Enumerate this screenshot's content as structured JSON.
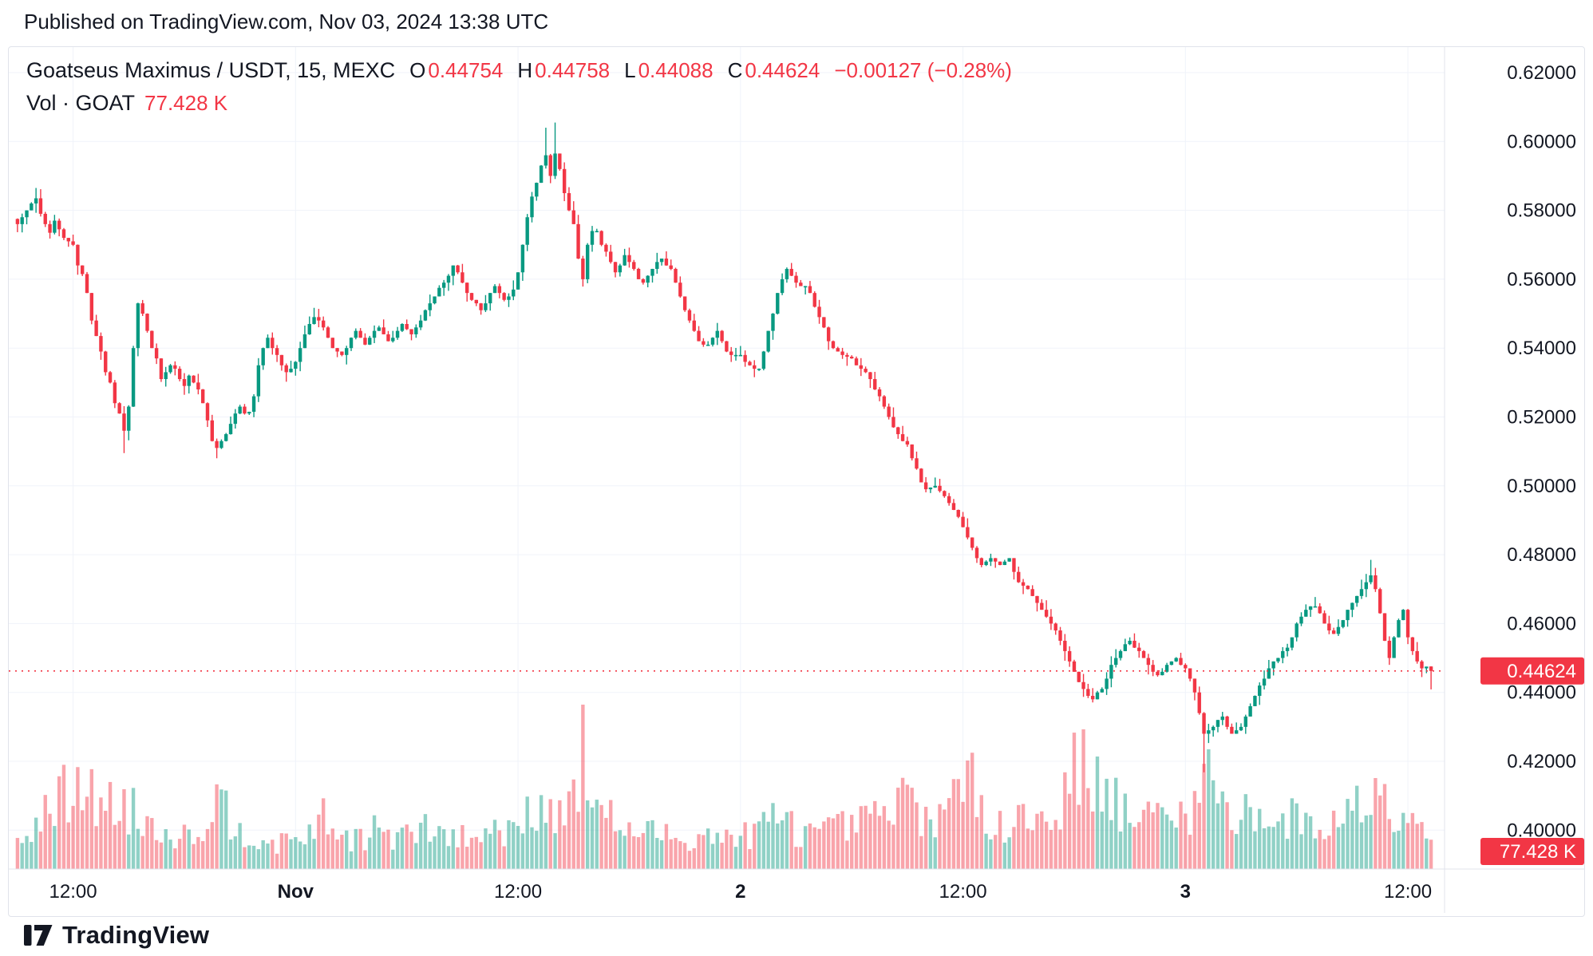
{
  "published": "Published on TradingView.com, Nov 03, 2024 13:38 UTC",
  "legend": {
    "title": "Goatseus Maximus / USDT, 15, MEXC",
    "o_label": "O",
    "o_value": "0.44754",
    "h_label": "H",
    "h_value": "0.44758",
    "l_label": "L",
    "l_value": "0.44088",
    "c_label": "C",
    "c_value": "0.44624",
    "change": "−0.00127 (−0.28%)",
    "vol_label": "Vol · GOAT",
    "vol_value": "77.428 K"
  },
  "footer": {
    "brand": "TradingView"
  },
  "colors": {
    "up": "#089981",
    "down": "#F23645",
    "volUp": "rgba(8,153,129,0.45)",
    "volDown": "rgba(242,54,69,0.45)",
    "grid": "#f0f3fa",
    "axisText": "#131722",
    "border": "#e0e3eb",
    "badgeBg": "#F23645",
    "badgeText": "#ffffff"
  },
  "chart_data": {
    "type": "candlestick",
    "symbol": "Goatseus Maximus / USDT",
    "interval": "15",
    "exchange": "MEXC",
    "last_ohlc": {
      "o": 0.44754,
      "h": 0.44758,
      "l": 0.44088,
      "c": 0.44624
    },
    "change": -0.00127,
    "change_pct": -0.28,
    "volume_label": "77.428 K",
    "last_price": 0.44624,
    "last_price_label": "0.44624",
    "y_axis": {
      "min": 0.4,
      "max": 0.62,
      "tick_step": 0.02,
      "ticks": [
        "0.62000",
        "0.60000",
        "0.58000",
        "0.56000",
        "0.54000",
        "0.52000",
        "0.50000",
        "0.48000",
        "0.46000",
        "0.44000",
        "0.42000",
        "0.40000"
      ]
    },
    "x_ticks": [
      {
        "i": 12,
        "label": "12:00",
        "bold": false
      },
      {
        "i": 60,
        "label": "Nov",
        "bold": true
      },
      {
        "i": 108,
        "label": "12:00",
        "bold": false
      },
      {
        "i": 156,
        "label": "2",
        "bold": true
      },
      {
        "i": 204,
        "label": "12:00",
        "bold": false
      },
      {
        "i": 252,
        "label": "3",
        "bold": true
      },
      {
        "i": 300,
        "label": "12:00",
        "bold": false
      }
    ],
    "n_candles": 306,
    "closes": [
      0.576,
      0.578,
      0.58,
      0.582,
      0.5835,
      0.579,
      0.576,
      0.5735,
      0.577,
      0.5745,
      0.572,
      0.571,
      0.57,
      0.564,
      0.5615,
      0.556,
      0.548,
      0.5435,
      0.539,
      0.533,
      0.53,
      0.524,
      0.521,
      0.516,
      0.523,
      0.54,
      0.553,
      0.55,
      0.545,
      0.54,
      0.537,
      0.531,
      0.533,
      0.535,
      0.534,
      0.531,
      0.529,
      0.532,
      0.53,
      0.528,
      0.524,
      0.519,
      0.513,
      0.511,
      0.513,
      0.515,
      0.518,
      0.521,
      0.523,
      0.521,
      0.5215,
      0.526,
      0.535,
      0.54,
      0.543,
      0.54,
      0.538,
      0.535,
      0.533,
      0.534,
      0.536,
      0.54,
      0.544,
      0.547,
      0.549,
      0.548,
      0.546,
      0.543,
      0.54,
      0.539,
      0.538,
      0.54,
      0.543,
      0.545,
      0.543,
      0.541,
      0.543,
      0.545,
      0.546,
      0.544,
      0.542,
      0.543,
      0.545,
      0.547,
      0.5455,
      0.544,
      0.546,
      0.548,
      0.551,
      0.553,
      0.555,
      0.5575,
      0.559,
      0.561,
      0.564,
      0.562,
      0.559,
      0.556,
      0.554,
      0.553,
      0.551,
      0.553,
      0.556,
      0.558,
      0.556,
      0.554,
      0.555,
      0.557,
      0.562,
      0.57,
      0.578,
      0.584,
      0.588,
      0.593,
      0.596,
      0.59,
      0.5965,
      0.592,
      0.585,
      0.58,
      0.576,
      0.566,
      0.56,
      0.57,
      0.574,
      0.574,
      0.57,
      0.568,
      0.565,
      0.562,
      0.564,
      0.567,
      0.565,
      0.563,
      0.56,
      0.559,
      0.561,
      0.563,
      0.565,
      0.566,
      0.564,
      0.563,
      0.559,
      0.555,
      0.551,
      0.548,
      0.545,
      0.542,
      0.541,
      0.541,
      0.543,
      0.545,
      0.542,
      0.539,
      0.538,
      0.538,
      0.538,
      0.536,
      0.535,
      0.534,
      0.534,
      0.539,
      0.545,
      0.55,
      0.556,
      0.56,
      0.563,
      0.561,
      0.559,
      0.558,
      0.558,
      0.556,
      0.552,
      0.549,
      0.546,
      0.542,
      0.54,
      0.539,
      0.538,
      0.5375,
      0.537,
      0.535,
      0.534,
      0.533,
      0.531,
      0.528,
      0.526,
      0.523,
      0.52,
      0.517,
      0.515,
      0.513,
      0.512,
      0.508,
      0.505,
      0.501,
      0.499,
      0.4995,
      0.5,
      0.4985,
      0.497,
      0.495,
      0.493,
      0.491,
      0.488,
      0.485,
      0.482,
      0.479,
      0.477,
      0.478,
      0.479,
      0.478,
      0.477,
      0.478,
      0.479,
      0.475,
      0.472,
      0.471,
      0.47,
      0.468,
      0.466,
      0.464,
      0.462,
      0.46,
      0.458,
      0.455,
      0.452,
      0.449,
      0.446,
      0.443,
      0.441,
      0.439,
      0.438,
      0.44,
      0.441,
      0.444,
      0.448,
      0.45,
      0.452,
      0.454,
      0.455,
      0.453,
      0.452,
      0.45,
      0.448,
      0.446,
      0.445,
      0.446,
      0.448,
      0.449,
      0.45,
      0.448,
      0.447,
      0.444,
      0.44,
      0.434,
      0.428,
      0.429,
      0.43,
      0.432,
      0.433,
      0.43,
      0.428,
      0.429,
      0.43,
      0.433,
      0.436,
      0.439,
      0.442,
      0.444,
      0.447,
      0.449,
      0.45,
      0.452,
      0.453,
      0.456,
      0.46,
      0.462,
      0.464,
      0.465,
      0.465,
      0.463,
      0.46,
      0.458,
      0.457,
      0.459,
      0.461,
      0.464,
      0.466,
      0.468,
      0.47,
      0.472,
      0.474,
      0.47,
      0.463,
      0.455,
      0.45,
      0.456,
      0.461,
      0.464,
      0.456,
      0.452,
      0.449,
      0.447,
      0.4475,
      0.44624
    ],
    "wick_events": [
      {
        "i": 4,
        "h": 0.5865
      },
      {
        "i": 23,
        "l": 0.5095
      },
      {
        "i": 43,
        "l": 0.508
      },
      {
        "i": 114,
        "h": 0.604
      },
      {
        "i": 116,
        "h": 0.6055
      },
      {
        "i": 256,
        "l": 0.4168
      },
      {
        "i": 292,
        "h": 0.4785
      }
    ],
    "last_candle": {
      "o": 0.44754,
      "h": 0.44758,
      "l": 0.44088,
      "c": 0.44624
    },
    "volume_profile": [
      [
        0,
        0.18
      ],
      [
        4,
        0.28
      ],
      [
        8,
        0.4
      ],
      [
        11,
        0.52
      ],
      [
        13,
        0.58
      ],
      [
        15,
        0.5
      ],
      [
        18,
        0.42
      ],
      [
        21,
        0.45
      ],
      [
        24,
        0.4
      ],
      [
        27,
        0.32
      ],
      [
        30,
        0.28
      ],
      [
        33,
        0.25
      ],
      [
        36,
        0.22
      ],
      [
        39,
        0.28
      ],
      [
        42,
        0.4
      ],
      [
        44,
        0.46
      ],
      [
        46,
        0.32
      ],
      [
        49,
        0.25
      ],
      [
        52,
        0.22
      ],
      [
        55,
        0.18
      ],
      [
        58,
        0.16
      ],
      [
        60,
        0.2
      ],
      [
        63,
        0.26
      ],
      [
        66,
        0.32
      ],
      [
        69,
        0.24
      ],
      [
        72,
        0.2
      ],
      [
        75,
        0.22
      ],
      [
        78,
        0.26
      ],
      [
        81,
        0.2
      ],
      [
        84,
        0.22
      ],
      [
        87,
        0.26
      ],
      [
        90,
        0.24
      ],
      [
        93,
        0.22
      ],
      [
        96,
        0.2
      ],
      [
        99,
        0.22
      ],
      [
        102,
        0.24
      ],
      [
        105,
        0.26
      ],
      [
        108,
        0.34
      ],
      [
        111,
        0.4
      ],
      [
        114,
        0.46
      ],
      [
        117,
        0.36
      ],
      [
        120,
        0.42
      ],
      [
        122,
        0.7
      ],
      [
        124,
        0.46
      ],
      [
        126,
        0.38
      ],
      [
        129,
        0.3
      ],
      [
        132,
        0.26
      ],
      [
        135,
        0.22
      ],
      [
        138,
        0.24
      ],
      [
        141,
        0.22
      ],
      [
        144,
        0.2
      ],
      [
        147,
        0.24
      ],
      [
        150,
        0.22
      ],
      [
        153,
        0.2
      ],
      [
        156,
        0.22
      ],
      [
        159,
        0.24
      ],
      [
        162,
        0.3
      ],
      [
        164,
        0.36
      ],
      [
        167,
        0.28
      ],
      [
        170,
        0.24
      ],
      [
        173,
        0.22
      ],
      [
        176,
        0.25
      ],
      [
        179,
        0.28
      ],
      [
        182,
        0.3
      ],
      [
        185,
        0.32
      ],
      [
        188,
        0.38
      ],
      [
        191,
        0.44
      ],
      [
        194,
        0.42
      ],
      [
        197,
        0.36
      ],
      [
        200,
        0.34
      ],
      [
        203,
        0.52
      ],
      [
        205,
        0.6
      ],
      [
        207,
        0.48
      ],
      [
        210,
        0.34
      ],
      [
        213,
        0.32
      ],
      [
        216,
        0.34
      ],
      [
        219,
        0.32
      ],
      [
        222,
        0.36
      ],
      [
        225,
        0.42
      ],
      [
        227,
        0.55
      ],
      [
        229,
        0.75
      ],
      [
        231,
        0.78
      ],
      [
        233,
        0.6
      ],
      [
        235,
        0.5
      ],
      [
        237,
        0.42
      ],
      [
        240,
        0.34
      ],
      [
        243,
        0.32
      ],
      [
        246,
        0.36
      ],
      [
        249,
        0.34
      ],
      [
        252,
        0.36
      ],
      [
        254,
        0.44
      ],
      [
        256,
        0.58
      ],
      [
        258,
        0.5
      ],
      [
        260,
        0.44
      ],
      [
        263,
        0.36
      ],
      [
        266,
        0.4
      ],
      [
        269,
        0.34
      ],
      [
        272,
        0.3
      ],
      [
        275,
        0.33
      ],
      [
        278,
        0.3
      ],
      [
        281,
        0.28
      ],
      [
        284,
        0.32
      ],
      [
        287,
        0.36
      ],
      [
        290,
        0.44
      ],
      [
        292,
        0.5
      ],
      [
        294,
        0.55
      ],
      [
        296,
        0.44
      ],
      [
        298,
        0.46
      ],
      [
        300,
        0.42
      ],
      [
        302,
        0.36
      ],
      [
        304,
        0.26
      ],
      [
        305,
        0.22
      ]
    ],
    "vol_events": [
      {
        "i": 122,
        "v": 1.0
      },
      {
        "i": 13,
        "v": 0.62
      },
      {
        "i": 205,
        "v": 0.66
      },
      {
        "i": 230,
        "v": 0.85
      },
      {
        "i": 256,
        "v": 0.64
      }
    ],
    "seed": 7,
    "wick_amp": 0.0028
  }
}
